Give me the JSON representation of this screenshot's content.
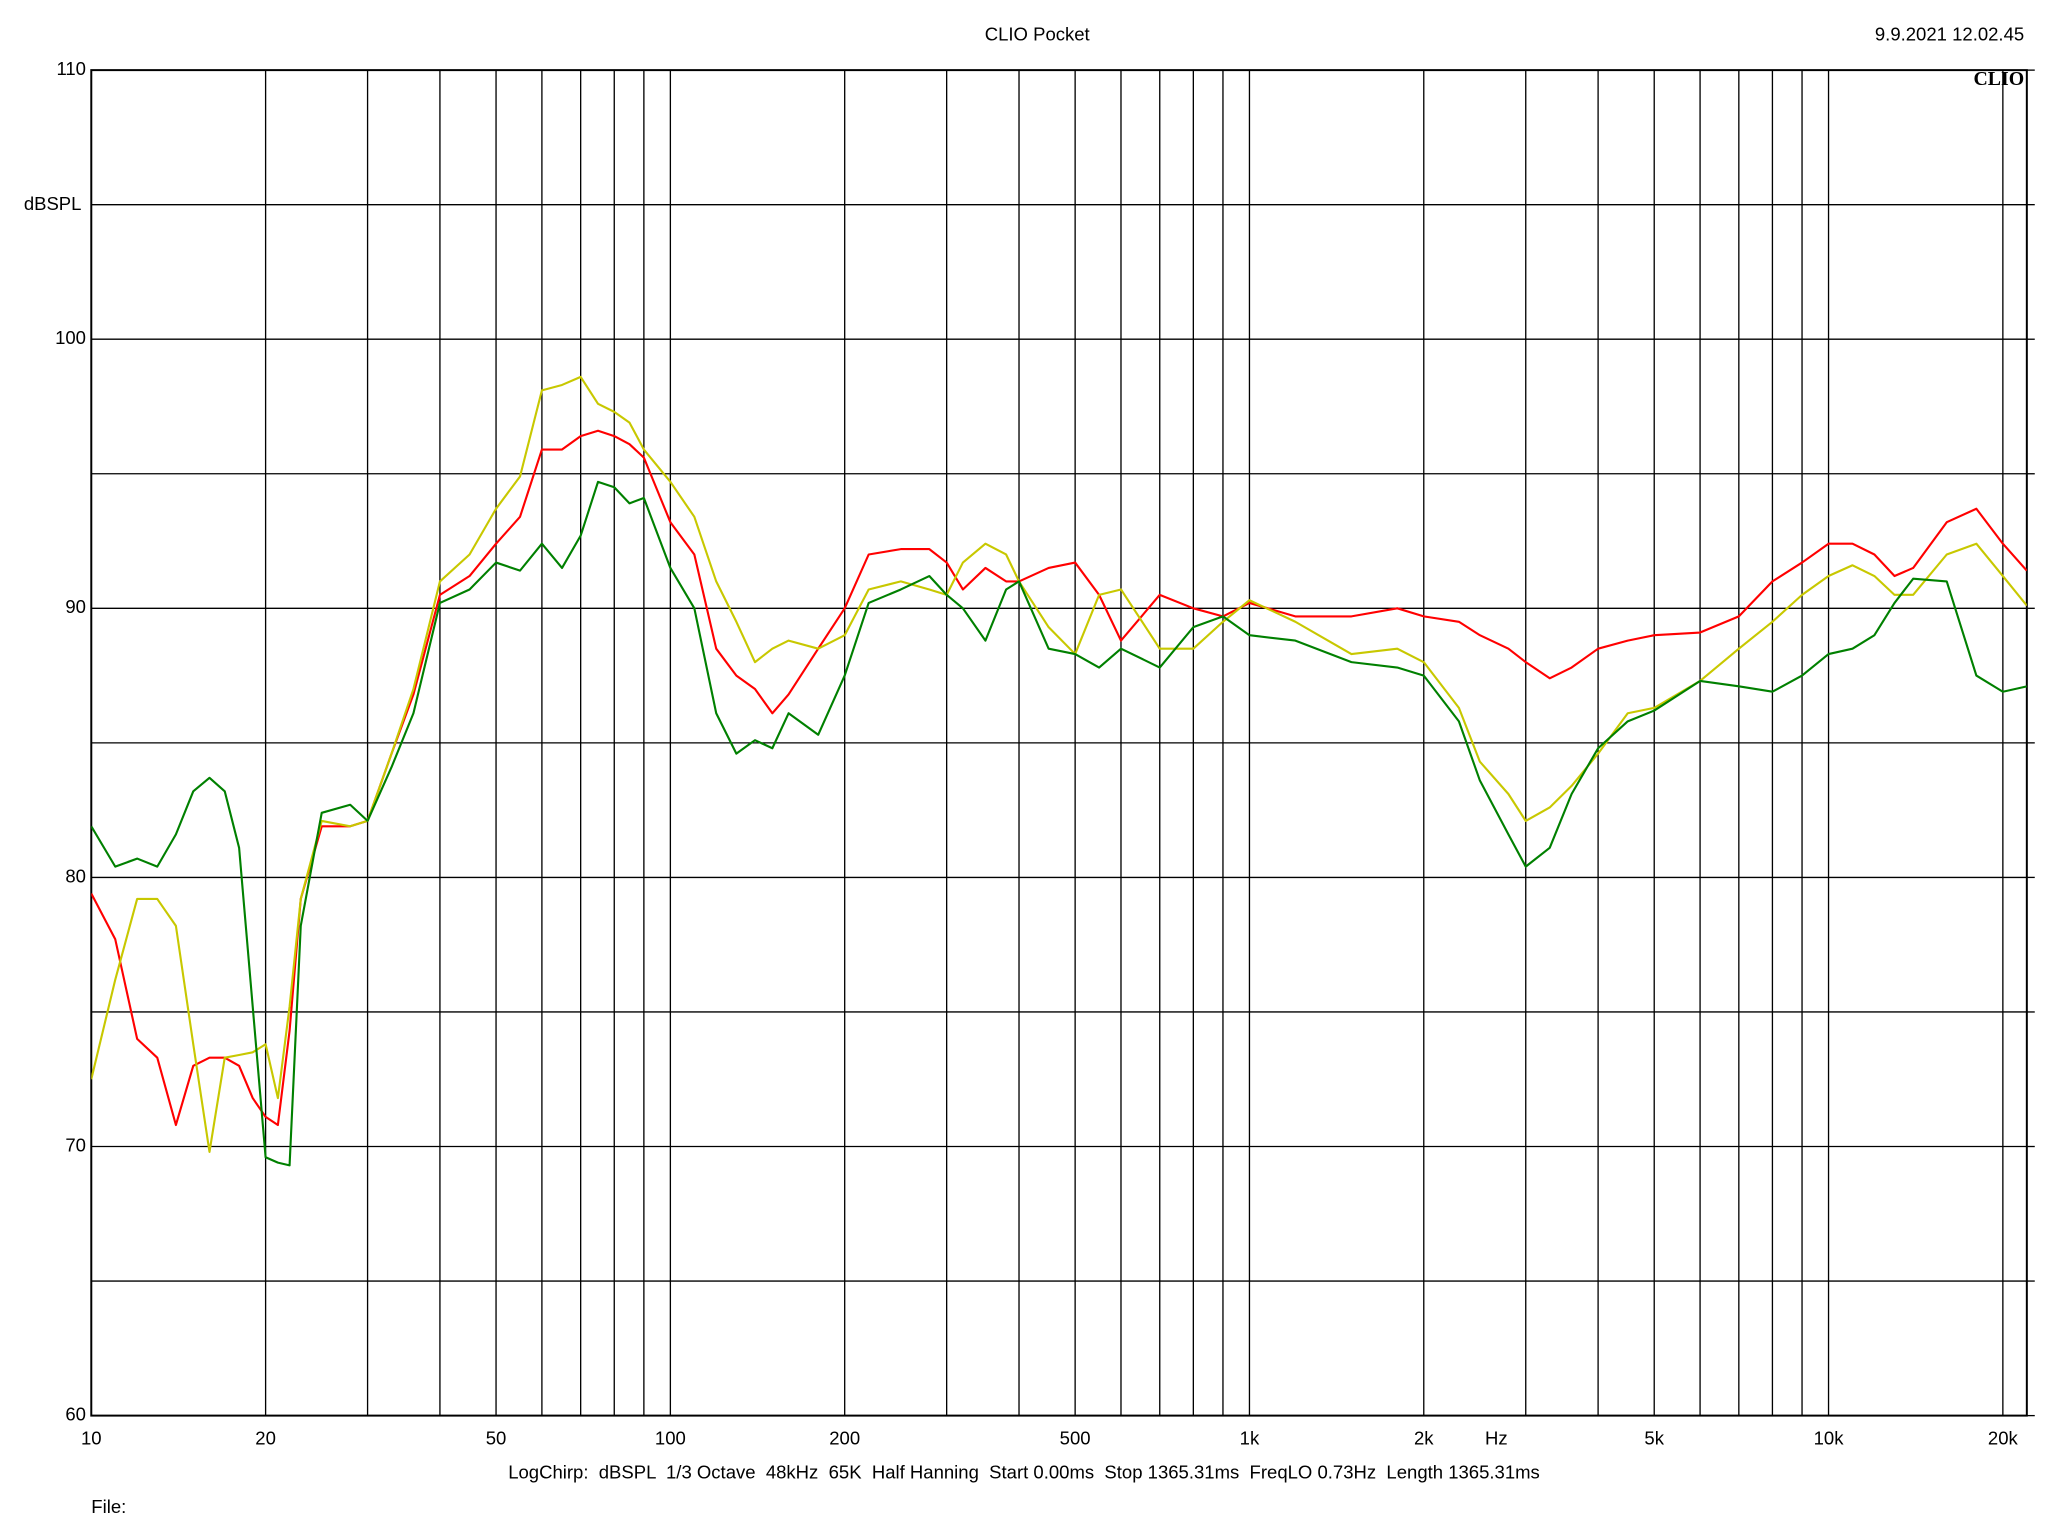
{
  "chart_data": {
    "type": "line",
    "title": "CLIO Pocket",
    "timestamp": "9.9.2021 12.02.45",
    "logo": "CLIO",
    "y_label": "dBSPL",
    "x_label": "Hz",
    "footer": "LogChirp:  dBSPL  1/3 Octave  48kHz  65K  Half Hanning  Start 0.00ms  Stop 1365.31ms  FreqLO 0.73Hz  Length 1365.31ms",
    "file_label": "File:",
    "x_scale": "log",
    "xlim": [
      10,
      22000
    ],
    "ylim": [
      60,
      110
    ],
    "xticks": [
      10,
      20,
      50,
      100,
      200,
      500,
      {
        "value": 1000,
        "label": "1k"
      },
      {
        "value": 2000,
        "label": "2k"
      },
      {
        "value": 5000,
        "label": "5k"
      },
      {
        "value": 10000,
        "label": "10k"
      },
      {
        "value": 20000,
        "label": "20k"
      }
    ],
    "yticks": [
      60,
      70,
      80,
      90,
      100,
      110
    ],
    "x_grid_minor": [
      30,
      40,
      60,
      70,
      80,
      90,
      300,
      400,
      600,
      700,
      800,
      900,
      3000,
      4000,
      6000,
      7000,
      8000,
      9000
    ],
    "y_grid_minor": [
      65,
      75,
      85,
      95,
      105
    ],
    "grid": true,
    "x": [
      10,
      11,
      12,
      13,
      14,
      15,
      16,
      17,
      18,
      19,
      20,
      21,
      22,
      23,
      25,
      28,
      30,
      33,
      36,
      40,
      45,
      50,
      55,
      60,
      65,
      70,
      75,
      80,
      85,
      90,
      100,
      110,
      120,
      130,
      140,
      150,
      160,
      180,
      200,
      220,
      250,
      280,
      300,
      320,
      350,
      380,
      400,
      450,
      500,
      550,
      600,
      700,
      800,
      900,
      1000,
      1200,
      1500,
      1800,
      2000,
      2300,
      2500,
      2800,
      3000,
      3300,
      3600,
      4000,
      4500,
      5000,
      6000,
      7000,
      8000,
      9000,
      10000,
      11000,
      12000,
      13000,
      14000,
      16000,
      18000,
      20000,
      22000
    ],
    "series": [
      {
        "color": "#ff0000",
        "values": [
          79.4,
          77.7,
          74.0,
          73.3,
          70.8,
          73.0,
          73.3,
          73.3,
          73.0,
          71.8,
          71.1,
          70.8,
          74.3,
          79.2,
          81.9,
          81.9,
          82.1,
          84.6,
          86.8,
          90.5,
          91.2,
          92.4,
          93.4,
          95.9,
          95.9,
          96.4,
          96.6,
          96.4,
          96.1,
          95.6,
          93.2,
          92.0,
          88.5,
          87.5,
          87.0,
          86.1,
          86.8,
          88.5,
          90.0,
          92.0,
          92.2,
          92.2,
          91.7,
          90.7,
          91.5,
          91.0,
          91.0,
          91.5,
          91.7,
          90.5,
          88.8,
          90.5,
          90.0,
          89.7,
          90.2,
          89.7,
          89.7,
          90.0,
          89.7,
          89.5,
          89.0,
          88.5,
          88.0,
          87.4,
          87.8,
          88.5,
          88.8,
          89.0,
          89.1,
          89.7,
          91.0,
          91.7,
          92.4,
          92.4,
          92.0,
          91.2,
          91.5,
          93.2,
          93.7,
          92.4,
          91.4
        ]
      },
      {
        "color": "#c8c800",
        "values": [
          72.5,
          76.2,
          79.2,
          79.2,
          78.2,
          73.8,
          69.8,
          73.3,
          73.4,
          73.5,
          73.8,
          71.8,
          75.2,
          79.2,
          82.1,
          81.9,
          82.1,
          84.6,
          87.0,
          91.0,
          92.0,
          93.7,
          94.9,
          98.1,
          98.3,
          98.6,
          97.6,
          97.3,
          96.9,
          95.9,
          94.7,
          93.4,
          91.0,
          89.5,
          88.0,
          88.5,
          88.8,
          88.5,
          89.0,
          90.7,
          91.0,
          90.7,
          90.5,
          91.7,
          92.4,
          92.0,
          91.0,
          89.3,
          88.3,
          90.5,
          90.7,
          88.5,
          88.5,
          89.5,
          90.3,
          89.5,
          88.3,
          88.5,
          88.0,
          86.3,
          84.3,
          83.1,
          82.1,
          82.6,
          83.4,
          84.6,
          86.1,
          86.3,
          87.3,
          88.5,
          89.5,
          90.5,
          91.2,
          91.6,
          91.2,
          90.5,
          90.5,
          92.0,
          92.4,
          91.2,
          90.1
        ]
      },
      {
        "color": "#008000",
        "values": [
          81.9,
          80.4,
          80.7,
          80.4,
          81.6,
          83.2,
          83.7,
          83.2,
          81.1,
          75.2,
          69.6,
          69.4,
          69.3,
          78.2,
          82.4,
          82.7,
          82.1,
          84.1,
          86.1,
          90.2,
          90.7,
          91.7,
          91.4,
          92.4,
          91.5,
          92.7,
          94.7,
          94.5,
          93.9,
          94.1,
          91.5,
          90.0,
          86.1,
          84.6,
          85.1,
          84.8,
          86.1,
          85.3,
          87.5,
          90.2,
          90.7,
          91.2,
          90.5,
          90.0,
          88.8,
          90.7,
          91.0,
          88.5,
          88.3,
          87.8,
          88.5,
          87.8,
          89.3,
          89.7,
          89.0,
          88.8,
          88.0,
          87.8,
          87.5,
          85.8,
          83.6,
          81.6,
          80.4,
          81.1,
          83.1,
          84.8,
          85.8,
          86.2,
          87.3,
          87.1,
          86.9,
          87.5,
          88.3,
          88.5,
          89.0,
          90.2,
          91.1,
          91.0,
          87.5,
          86.9,
          87.1
        ]
      }
    ]
  }
}
